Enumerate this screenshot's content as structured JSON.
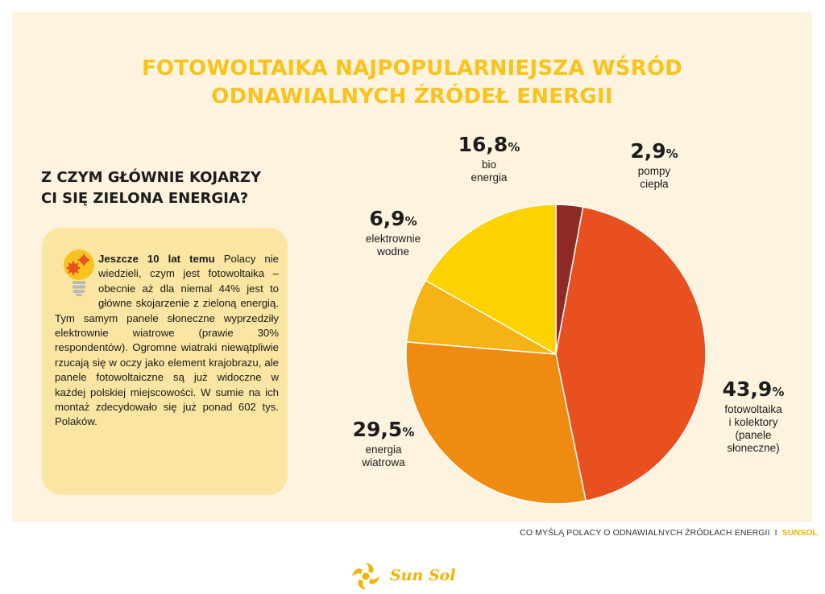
{
  "title": {
    "line1": "FOTOWOLTAIKA NAJPOPULARNIEJSZA WŚRÓD",
    "line2": "ODNAWIALNYCH ŹRÓDEŁ ENERGII"
  },
  "question": {
    "line1": "Z CZYM GŁÓWNIE KOJARZY",
    "line2": "CI SIĘ ZIELONA ENERGIA?"
  },
  "info_box": {
    "lead": "Jeszcze 10 lat temu",
    "text": "Polacy nie wiedzieli, czym jest fotowoltaika – obecnie aż dla niemal 44% jest to główne skojarzenie z zieloną energią. Tym samym panele słoneczne wyprzedziły elektrownie wiatrowe (prawie 30% respondentów). Ogromne wiatraki niewątpliwie rzucają się w oczy jako element krajobrazu, ale panele fotowoltaiczne są już widoczne w każdej polskiej miejscowości. W sumie na ich montaż zdecydowało się już ponad 602 tys. Polaków.",
    "icon": "lightbulb-gears-icon"
  },
  "chart_data": {
    "type": "pie",
    "slices": [
      {
        "label_lines": [
          "pompy",
          "ciepła"
        ],
        "value": 2.9,
        "value_text": "2,9",
        "color": "#8e2a24"
      },
      {
        "label_lines": [
          "fotowoltaika",
          "i kolektory",
          "(panele",
          "słoneczne)"
        ],
        "value": 43.9,
        "value_text": "43,9",
        "color": "#e8501f"
      },
      {
        "label_lines": [
          "energia",
          "wiatrowa"
        ],
        "value": 29.5,
        "value_text": "29,5",
        "color": "#ef8b11"
      },
      {
        "label_lines": [
          "elektrownie",
          "wodne"
        ],
        "value": 6.9,
        "value_text": "6,9",
        "color": "#f6b315"
      },
      {
        "label_lines": [
          "bio",
          "energia"
        ],
        "value": 16.8,
        "value_text": "16,8",
        "color": "#fed101"
      }
    ],
    "unit": "%",
    "start": "top, clockwise"
  },
  "footer": {
    "text": "CO MYŚLĄ POLACY O ODNAWIALNYCH ŹRÓDŁACH ENERGII",
    "separator": "I",
    "brand": "SUNSOL"
  },
  "logo": {
    "text": "Sun Sol",
    "color": "#f0b500"
  }
}
